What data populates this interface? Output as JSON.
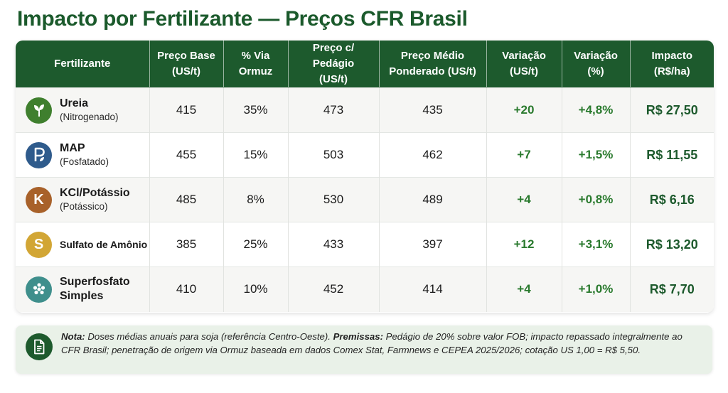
{
  "title": "Impacto por Fertilizante — Preços CFR Brasil",
  "table": {
    "headers": [
      {
        "l1": "Fertilizante",
        "l2": ""
      },
      {
        "l1": "Preço Base",
        "l2": "(US/t)"
      },
      {
        "l1": "% Via",
        "l2": "Ormuz"
      },
      {
        "l1": "Preço c/ Pedágio",
        "l2": "(US/t)"
      },
      {
        "l1": "Preço Médio",
        "l2": "Ponderado (US/t)"
      },
      {
        "l1": "Variação",
        "l2": "(US/t)"
      },
      {
        "l1": "Variação",
        "l2": "(%)"
      },
      {
        "l1": "Impacto",
        "l2": "(R$/ha)"
      }
    ],
    "rows": [
      {
        "name": "Ureia",
        "sub": "(Nitrogenado)",
        "icon": "leaf-icon",
        "icon_color": "#3f7f2e",
        "base": "415",
        "ormuz": "35%",
        "pedagio": "473",
        "medio": "435",
        "var_us": "+20",
        "var_pct": "+4,8%",
        "impacto": "R$ 27,50"
      },
      {
        "name": "MAP",
        "sub": "(Fosfatado)",
        "icon": "phosphate-p-icon",
        "icon_color": "#2f5b8c",
        "base": "455",
        "ormuz": "15%",
        "pedagio": "503",
        "medio": "462",
        "var_us": "+7",
        "var_pct": "+1,5%",
        "impacto": "R$ 11,55"
      },
      {
        "name": "KCl/Potássio",
        "sub": "(Potássico)",
        "icon": "potassium-k-icon",
        "icon_letter": "K",
        "icon_color": "#a8612a",
        "base": "485",
        "ormuz": "8%",
        "pedagio": "530",
        "medio": "489",
        "var_us": "+4",
        "var_pct": "+0,8%",
        "impacto": "R$ 6,16"
      },
      {
        "name": "Sulfato de Amônio",
        "sub": "",
        "icon": "sulfur-s-icon",
        "icon_letter": "S",
        "icon_color": "#d2a635",
        "base": "385",
        "ormuz": "25%",
        "pedagio": "433",
        "medio": "397",
        "var_us": "+12",
        "var_pct": "+3,1%",
        "impacto": "R$ 13,20"
      },
      {
        "name": "Superfosfato",
        "name2": "Simples",
        "sub": "",
        "icon": "granules-icon",
        "icon_color": "#3f8f8c",
        "base": "410",
        "ormuz": "10%",
        "pedagio": "452",
        "medio": "414",
        "var_us": "+4",
        "var_pct": "+1,0%",
        "impacto": "R$ 7,70"
      }
    ]
  },
  "note": {
    "icon": "document-icon",
    "label": "Nota:",
    "text1": " Doses médias anuais para soja (referência Centro-Oeste). ",
    "label2": "Premissas:",
    "text2": " Pedágio de 20% sobre valor FOB; impacto repassado integralmente ao CFR Brasil; penetração de origem via Ormuz baseada em dados Comex Stat, Farmnews e CEPEA 2025/2026; cotação US 1,00 = R$ 5,50."
  }
}
